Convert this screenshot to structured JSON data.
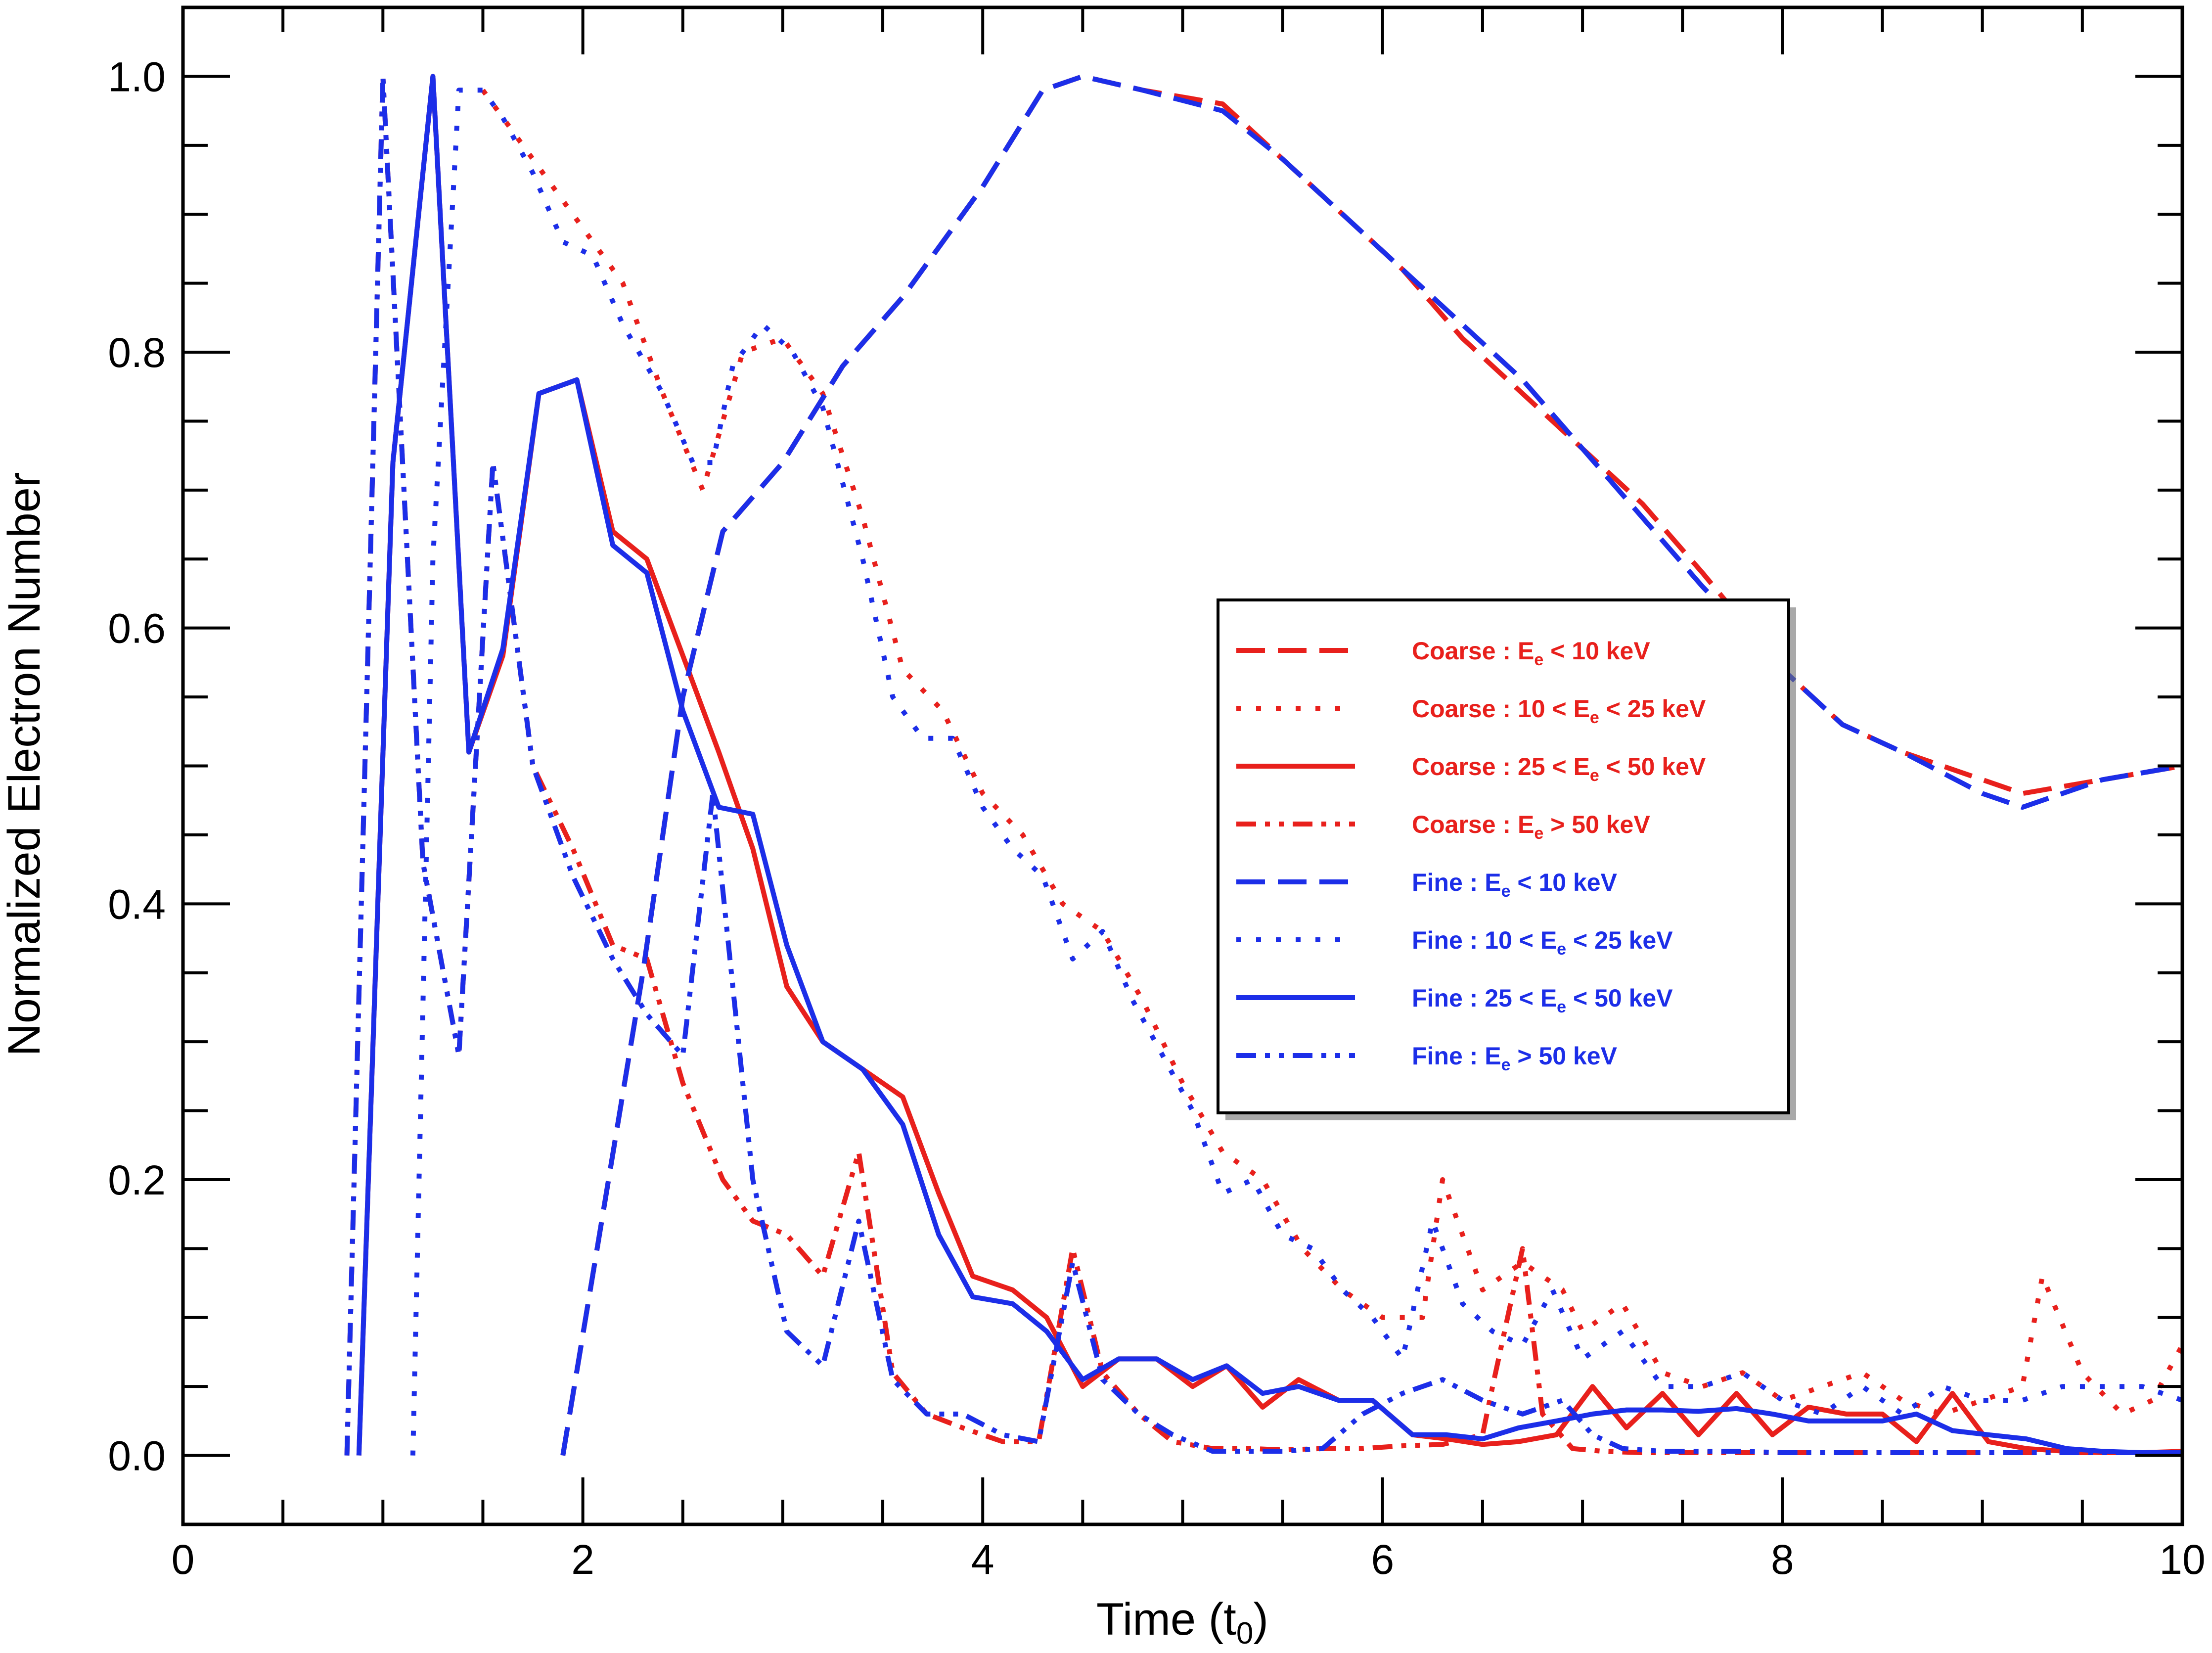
{
  "chart_data": {
    "type": "line",
    "title": "",
    "xlabel": "Time (t",
    "xlabel_sub": "0",
    "xlabel_suffix": ")",
    "ylabel": "Normalized Electron Number",
    "xlim": [
      0,
      10
    ],
    "ylim": [
      -0.05,
      1.05
    ],
    "xticks": [
      0,
      2,
      4,
      6,
      8,
      10
    ],
    "xtick_labels": [
      "0",
      "2",
      "4",
      "6",
      "8",
      "10"
    ],
    "yticks": [
      0.0,
      0.2,
      0.4,
      0.6,
      0.8,
      1.0
    ],
    "ytick_labels": [
      "0.0",
      "0.2",
      "0.4",
      "0.6",
      "0.8",
      "1.0"
    ],
    "legend_position": "center-right",
    "series": [
      {
        "name": "Coarse : Ee < 10 keV",
        "legend": {
          "prefix": "Coarse : E",
          "sub": "e",
          "suffix": " < 10 keV"
        },
        "color": "#e8201c",
        "dash": "dashed",
        "x": [
          1.9,
          2.3,
          2.5,
          2.7,
          3.0,
          3.3,
          3.6,
          4.0,
          4.3,
          4.5,
          4.8,
          5.2,
          5.5,
          5.8,
          6.1,
          6.4,
          6.7,
          7.0,
          7.3,
          7.6,
          8.0,
          8.3,
          8.6,
          9.0,
          9.2,
          9.6,
          10.0
        ],
        "y": [
          0.0,
          0.35,
          0.55,
          0.67,
          0.72,
          0.79,
          0.84,
          0.92,
          0.99,
          1.0,
          0.99,
          0.98,
          0.94,
          0.9,
          0.86,
          0.81,
          0.77,
          0.73,
          0.69,
          0.64,
          0.57,
          0.53,
          0.51,
          0.49,
          0.48,
          0.49,
          0.5
        ]
      },
      {
        "name": "Coarse : 10 < Ee < 25 keV",
        "legend": {
          "prefix": "Coarse : 10 < E",
          "sub": "e",
          "suffix": " < 25 keV"
        },
        "color": "#e8201c",
        "dash": "dotted",
        "x": [
          1.5,
          1.6,
          1.8,
          2.0,
          2.2,
          2.4,
          2.6,
          2.8,
          3.0,
          3.2,
          3.4,
          3.6,
          3.8,
          4.0,
          4.2,
          4.4,
          4.6,
          4.8,
          5.0,
          5.2,
          5.4,
          5.6,
          5.8,
          6.0,
          6.2,
          6.3,
          6.5,
          6.7,
          6.9,
          7.0,
          7.2,
          7.4,
          7.6,
          7.8,
          8.0,
          8.2,
          8.4,
          8.6,
          8.8,
          9.0,
          9.2,
          9.3,
          9.5,
          9.7,
          9.85,
          10.0
        ],
        "y": [
          0.99,
          0.97,
          0.93,
          0.89,
          0.85,
          0.77,
          0.7,
          0.8,
          0.81,
          0.77,
          0.68,
          0.57,
          0.54,
          0.48,
          0.45,
          0.4,
          0.38,
          0.33,
          0.27,
          0.22,
          0.2,
          0.15,
          0.12,
          0.1,
          0.1,
          0.2,
          0.12,
          0.14,
          0.12,
          0.09,
          0.11,
          0.06,
          0.05,
          0.06,
          0.04,
          0.05,
          0.06,
          0.04,
          0.03,
          0.04,
          0.05,
          0.13,
          0.06,
          0.03,
          0.04,
          0.08
        ]
      },
      {
        "name": "Coarse : 25 < Ee < 50 keV",
        "legend": {
          "prefix": "Coarse : 25 < E",
          "sub": "e",
          "suffix": " < 50 keV"
        },
        "color": "#e8201c",
        "dash": "solid",
        "x": [
          0.88,
          1.05,
          1.25,
          1.43,
          1.6,
          1.78,
          1.97,
          2.15,
          2.32,
          2.5,
          2.68,
          2.85,
          3.02,
          3.2,
          3.4,
          3.6,
          3.78,
          3.95,
          4.15,
          4.32,
          4.5,
          4.68,
          4.87,
          5.05,
          5.22,
          5.4,
          5.58,
          5.78,
          5.95,
          6.15,
          6.32,
          6.5,
          6.68,
          6.87,
          7.05,
          7.22,
          7.4,
          7.58,
          7.77,
          7.95,
          8.13,
          8.32,
          8.5,
          8.67,
          8.85,
          9.03,
          9.22,
          9.42,
          9.6,
          9.8,
          10.0
        ],
        "y": [
          0.0,
          0.72,
          1.0,
          0.51,
          0.58,
          0.77,
          0.78,
          0.67,
          0.65,
          0.58,
          0.51,
          0.44,
          0.34,
          0.3,
          0.28,
          0.26,
          0.19,
          0.13,
          0.12,
          0.1,
          0.05,
          0.07,
          0.07,
          0.05,
          0.065,
          0.035,
          0.055,
          0.04,
          0.04,
          0.015,
          0.012,
          0.008,
          0.01,
          0.015,
          0.05,
          0.02,
          0.045,
          0.015,
          0.045,
          0.015,
          0.035,
          0.03,
          0.03,
          0.01,
          0.045,
          0.01,
          0.005,
          0.003,
          0.002,
          0.002,
          0.003
        ]
      },
      {
        "name": "Coarse : Ee > 50 keV",
        "legend": {
          "prefix": "Coarse : E",
          "sub": "e",
          "suffix": " > 50 keV"
        },
        "color": "#e8201c",
        "dash": "dashdotdot",
        "x": [
          0.82,
          1.0,
          1.2,
          1.38,
          1.55,
          1.75,
          1.95,
          2.15,
          2.32,
          2.5,
          2.7,
          2.85,
          3.02,
          3.2,
          3.38,
          3.55,
          3.72,
          3.9,
          4.1,
          4.28,
          4.45,
          4.6,
          4.78,
          4.95,
          5.15,
          5.35,
          5.5,
          5.7,
          5.9,
          6.1,
          6.3,
          6.5,
          6.55,
          6.7,
          6.8,
          6.95,
          7.1,
          7.3,
          7.5,
          7.7,
          7.9,
          8.1,
          8.3,
          8.5,
          8.7,
          8.9,
          9.1,
          9.3,
          9.5,
          9.7,
          10.0
        ],
        "y": [
          0.0,
          1.0,
          0.43,
          0.29,
          0.72,
          0.5,
          0.44,
          0.37,
          0.36,
          0.27,
          0.2,
          0.17,
          0.16,
          0.13,
          0.22,
          0.06,
          0.03,
          0.02,
          0.01,
          0.01,
          0.15,
          0.06,
          0.03,
          0.01,
          0.005,
          0.005,
          0.004,
          0.005,
          0.005,
          0.007,
          0.008,
          0.015,
          0.05,
          0.15,
          0.03,
          0.005,
          0.003,
          0.002,
          0.002,
          0.002,
          0.002,
          0.002,
          0.002,
          0.002,
          0.002,
          0.002,
          0.002,
          0.002,
          0.002,
          0.002,
          0.002
        ]
      },
      {
        "name": "Fine : Ee < 10 keV",
        "legend": {
          "prefix": "Fine : E",
          "sub": "e",
          "suffix": " < 10 keV"
        },
        "color": "#1c2ee8",
        "dash": "dashed",
        "x": [
          1.9,
          2.3,
          2.5,
          2.7,
          3.0,
          3.3,
          3.6,
          4.0,
          4.3,
          4.5,
          4.8,
          5.2,
          5.5,
          5.8,
          6.1,
          6.4,
          6.7,
          7.0,
          7.3,
          7.6,
          8.0,
          8.3,
          8.6,
          9.0,
          9.2,
          9.6,
          10.0
        ],
        "y": [
          0.0,
          0.35,
          0.55,
          0.67,
          0.72,
          0.79,
          0.84,
          0.92,
          0.99,
          1.0,
          0.99,
          0.975,
          0.94,
          0.9,
          0.86,
          0.82,
          0.78,
          0.73,
          0.68,
          0.63,
          0.57,
          0.53,
          0.51,
          0.48,
          0.47,
          0.49,
          0.5
        ]
      },
      {
        "name": "Fine : 10 < Ee < 25 keV",
        "legend": {
          "prefix": "Fine : 10 < E",
          "sub": "e",
          "suffix": " < 25 keV"
        },
        "color": "#1c2ee8",
        "dash": "dotted",
        "x": [
          1.15,
          1.25,
          1.38,
          1.5,
          1.6,
          1.75,
          1.9,
          2.05,
          2.2,
          2.4,
          2.55,
          2.65,
          2.75,
          2.9,
          3.05,
          3.2,
          3.4,
          3.55,
          3.7,
          3.85,
          4.0,
          4.15,
          4.3,
          4.45,
          4.6,
          4.75,
          4.9,
          5.05,
          5.2,
          5.35,
          5.5,
          5.65,
          5.8,
          5.95,
          6.1,
          6.25,
          6.4,
          6.55,
          6.7,
          6.85,
          7.0,
          7.2,
          7.4,
          7.6,
          7.8,
          8.0,
          8.2,
          8.4,
          8.6,
          8.8,
          9.0,
          9.2,
          9.4,
          9.6,
          9.8,
          10.0
        ],
        "y": [
          0.0,
          0.65,
          0.99,
          0.99,
          0.97,
          0.93,
          0.88,
          0.87,
          0.82,
          0.77,
          0.72,
          0.72,
          0.79,
          0.82,
          0.8,
          0.76,
          0.65,
          0.55,
          0.52,
          0.52,
          0.47,
          0.44,
          0.42,
          0.36,
          0.38,
          0.33,
          0.29,
          0.25,
          0.19,
          0.2,
          0.16,
          0.15,
          0.12,
          0.1,
          0.07,
          0.17,
          0.11,
          0.09,
          0.08,
          0.12,
          0.07,
          0.09,
          0.05,
          0.05,
          0.06,
          0.04,
          0.03,
          0.05,
          0.03,
          0.05,
          0.04,
          0.04,
          0.05,
          0.05,
          0.05,
          0.04
        ]
      },
      {
        "name": "Fine : 25 < Ee < 50 keV",
        "legend": {
          "prefix": "Fine : 25 < E",
          "sub": "e",
          "suffix": " < 50 keV"
        },
        "color": "#1c2ee8",
        "dash": "solid",
        "x": [
          0.88,
          1.05,
          1.25,
          1.43,
          1.6,
          1.78,
          1.97,
          2.15,
          2.32,
          2.5,
          2.68,
          2.85,
          3.02,
          3.2,
          3.4,
          3.6,
          3.78,
          3.95,
          4.15,
          4.32,
          4.5,
          4.68,
          4.87,
          5.05,
          5.22,
          5.4,
          5.58,
          5.78,
          5.95,
          6.15,
          6.32,
          6.5,
          6.68,
          6.87,
          7.05,
          7.22,
          7.4,
          7.58,
          7.77,
          7.95,
          8.13,
          8.32,
          8.5,
          8.67,
          8.85,
          9.03,
          9.22,
          9.42,
          9.6,
          9.8,
          10.0
        ],
        "y": [
          0.0,
          0.72,
          1.0,
          0.51,
          0.585,
          0.77,
          0.78,
          0.66,
          0.64,
          0.54,
          0.47,
          0.465,
          0.37,
          0.3,
          0.28,
          0.24,
          0.16,
          0.115,
          0.11,
          0.09,
          0.055,
          0.07,
          0.07,
          0.055,
          0.065,
          0.045,
          0.05,
          0.04,
          0.04,
          0.015,
          0.015,
          0.012,
          0.02,
          0.025,
          0.03,
          0.033,
          0.033,
          0.032,
          0.034,
          0.03,
          0.025,
          0.025,
          0.025,
          0.03,
          0.018,
          0.015,
          0.012,
          0.005,
          0.003,
          0.002,
          0.002
        ]
      },
      {
        "name": "Fine : Ee > 50 keV",
        "legend": {
          "prefix": "Fine : E",
          "sub": "e",
          "suffix": " > 50 keV"
        },
        "color": "#1c2ee8",
        "dash": "dashdotdot",
        "x": [
          0.82,
          1.0,
          1.2,
          1.38,
          1.55,
          1.75,
          1.95,
          2.15,
          2.32,
          2.5,
          2.65,
          2.85,
          3.02,
          3.2,
          3.38,
          3.55,
          3.72,
          3.9,
          4.1,
          4.28,
          4.45,
          4.6,
          4.78,
          4.95,
          5.15,
          5.35,
          5.5,
          5.7,
          5.9,
          6.1,
          6.3,
          6.5,
          6.7,
          6.9,
          7.05,
          7.2,
          7.4,
          7.6,
          7.8,
          8.0,
          8.2,
          8.4,
          8.6,
          8.8,
          9.0,
          9.2,
          9.4,
          9.6,
          9.8,
          10.0
        ],
        "y": [
          0.0,
          1.0,
          0.43,
          0.29,
          0.72,
          0.5,
          0.42,
          0.36,
          0.32,
          0.29,
          0.48,
          0.2,
          0.09,
          0.065,
          0.17,
          0.055,
          0.03,
          0.03,
          0.015,
          0.01,
          0.14,
          0.055,
          0.03,
          0.015,
          0.003,
          0.003,
          0.003,
          0.005,
          0.03,
          0.045,
          0.055,
          0.04,
          0.03,
          0.04,
          0.015,
          0.005,
          0.003,
          0.003,
          0.003,
          0.002,
          0.002,
          0.002,
          0.002,
          0.002,
          0.002,
          0.002,
          0.002,
          0.002,
          0.002,
          0.002
        ]
      }
    ]
  }
}
